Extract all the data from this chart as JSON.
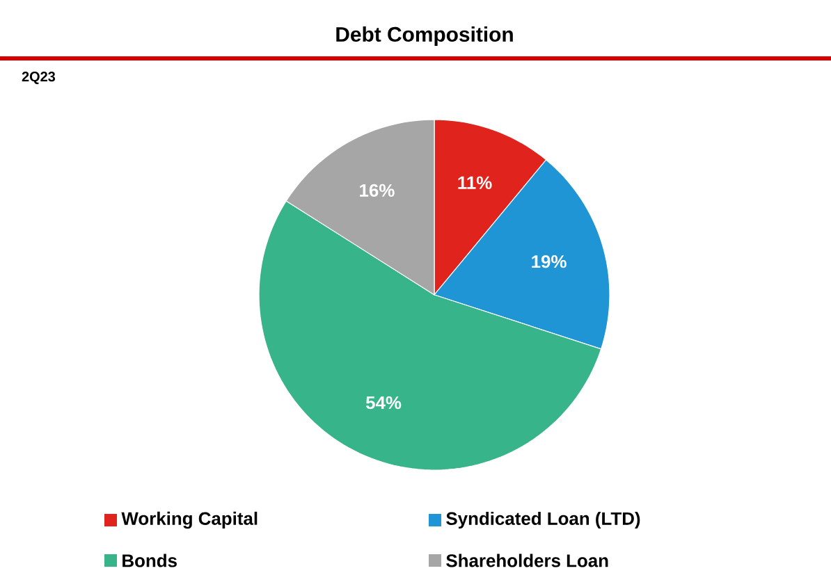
{
  "chart_data": {
    "type": "pie",
    "title": "Debt Composition",
    "subtitle": "2Q23",
    "categories": [
      "Working Capital",
      "Syndicated Loan (LTD)",
      "Bonds",
      "Shareholders Loan"
    ],
    "values": [
      11,
      19,
      54,
      16
    ],
    "colors": [
      "#e0231c",
      "#1f95d6",
      "#38b48b",
      "#a6a6a6"
    ],
    "value_labels": [
      "11%",
      "19%",
      "54%",
      "16%"
    ],
    "legend": "bottom"
  }
}
